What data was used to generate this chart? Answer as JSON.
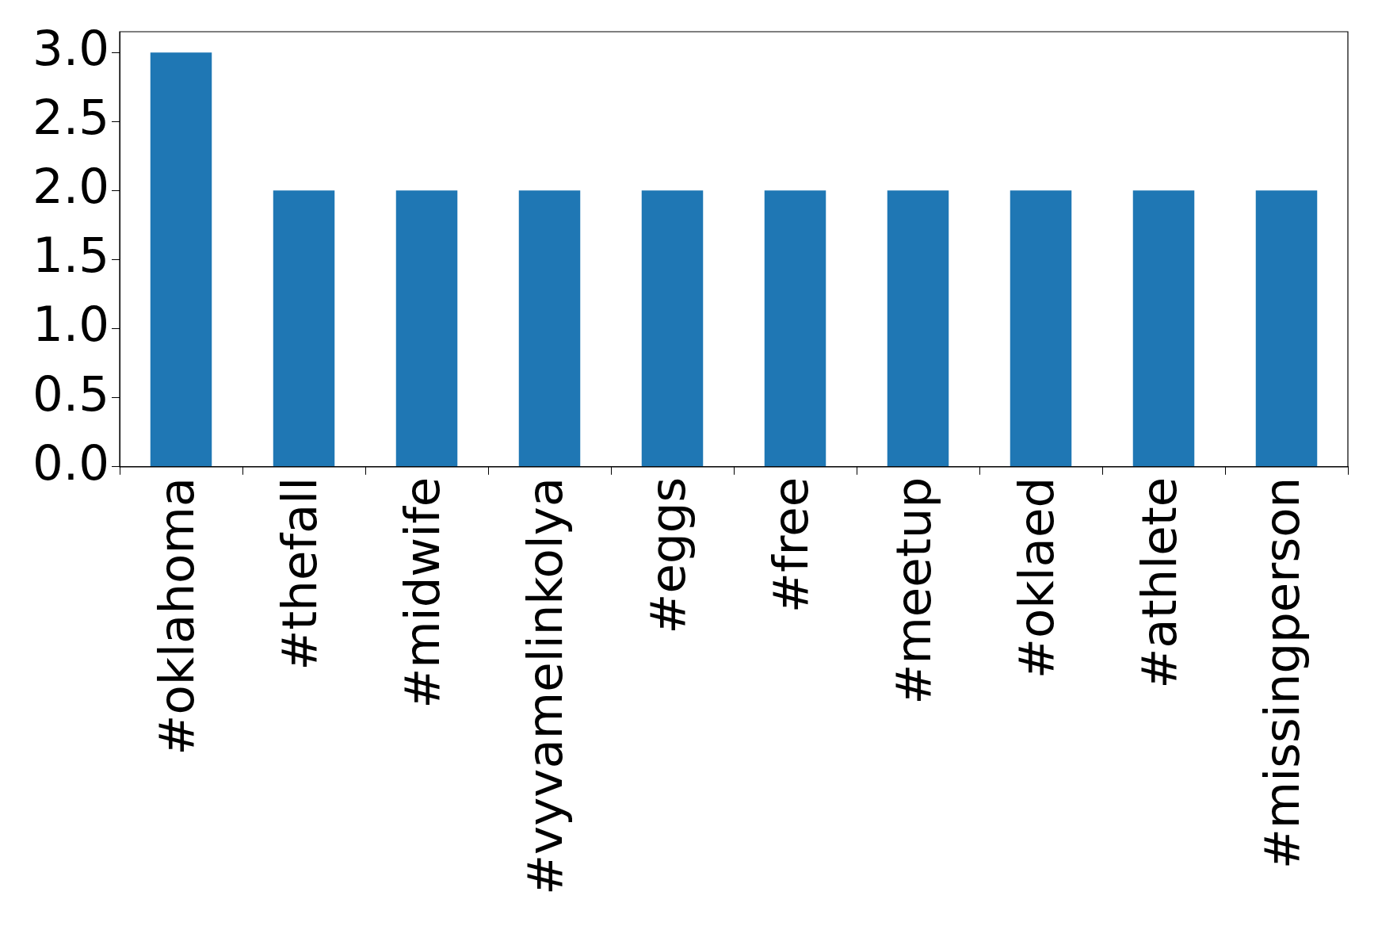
{
  "chart_data": {
    "type": "bar",
    "categories": [
      "#oklahoma",
      "#thefall",
      "#midwife",
      "#vyvamelinkolya",
      "#eggs",
      "#free",
      "#meetup",
      "#oklaed",
      "#athlete",
      "#missingperson"
    ],
    "values": [
      3,
      2,
      2,
      2,
      2,
      2,
      2,
      2,
      2,
      2
    ],
    "color": "#1f77b4",
    "ylim": [
      0,
      3.15
    ],
    "yticks": [
      {
        "value": 0,
        "label": "0.0"
      },
      {
        "value": 0.5,
        "label": "0.5"
      },
      {
        "value": 1,
        "label": "1.0"
      },
      {
        "value": 1.5,
        "label": "1.5"
      },
      {
        "value": 2,
        "label": "2.0"
      },
      {
        "value": 2.5,
        "label": "2.5"
      },
      {
        "value": 3,
        "label": "3.0"
      }
    ],
    "grid": false,
    "legend": false
  }
}
